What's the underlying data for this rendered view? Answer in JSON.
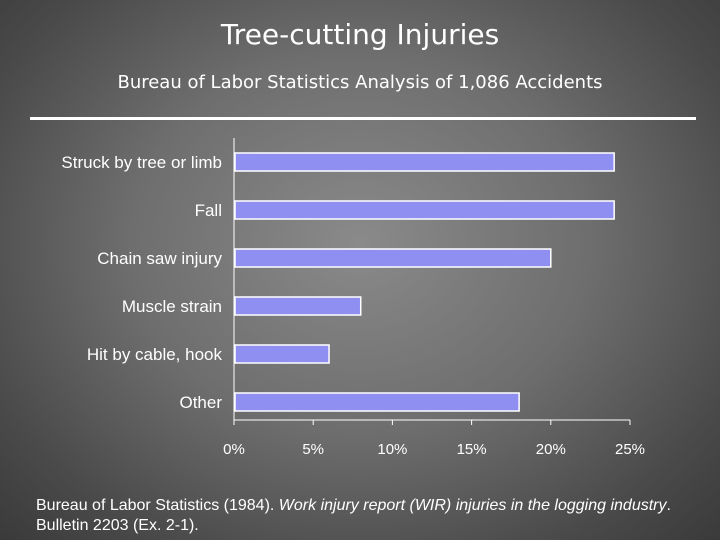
{
  "title": "Tree-cutting Injuries",
  "subtitle": "Bureau of Labor Statistics Analysis of 1,086 Accidents",
  "colors": {
    "bar_fill": "#8f8ff2",
    "bar_stroke": "#ffffff",
    "text": "#ffffff",
    "axis": "#ffffff"
  },
  "chart_data": {
    "type": "bar",
    "orientation": "horizontal",
    "categories": [
      "Struck by tree or limb",
      "Fall",
      "Chain saw injury",
      "Muscle strain",
      "Hit by cable, hook",
      "Other"
    ],
    "values": [
      24,
      24,
      20,
      8,
      6,
      18
    ],
    "xlim": [
      0,
      25
    ],
    "x_ticks": [
      0,
      5,
      10,
      15,
      20,
      25
    ],
    "x_tick_labels": [
      "0%",
      "5%",
      "10%",
      "15%",
      "20%",
      "25%"
    ],
    "grid": false,
    "legend": "none"
  },
  "footnote": {
    "part1": "Bureau of Labor Statistics (1984). ",
    "italic": "Work injury report (WIR) injuries in the logging industry",
    "part2": ". Bulletin 2203 (Ex. 2-1)."
  }
}
